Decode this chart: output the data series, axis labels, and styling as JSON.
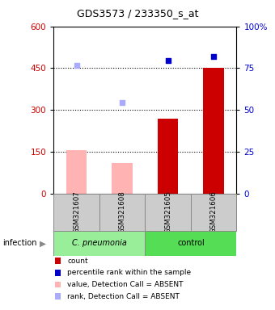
{
  "title": "GDS3573 / 233350_s_at",
  "samples": [
    "GSM321607",
    "GSM321608",
    "GSM321605",
    "GSM321606"
  ],
  "bar_values_absent": [
    157,
    110,
    null,
    null
  ],
  "bar_values_present": [
    null,
    null,
    270,
    450
  ],
  "scatter_rank_absent": [
    460,
    327,
    null,
    null
  ],
  "scatter_rank_present": [
    null,
    null,
    478,
    493
  ],
  "ylim_left": [
    0,
    600
  ],
  "ylim_right": [
    0,
    100
  ],
  "yticks_left": [
    0,
    150,
    300,
    450,
    600
  ],
  "yticks_right": [
    0,
    25,
    50,
    75,
    100
  ],
  "yticklabels_right": [
    "0",
    "25",
    "50",
    "75",
    "100%"
  ],
  "color_bar_absent": "#ffb3b3",
  "color_bar_present": "#cc0000",
  "color_scatter_absent": "#aaaaff",
  "color_scatter_present": "#0000cc",
  "group1_label": "C. pneumonia",
  "group2_label": "control",
  "group1_color": "#99ee99",
  "group2_color": "#55dd55",
  "sample_bg_color": "#cccccc",
  "infection_label": "infection",
  "legend_items": [
    {
      "label": "count",
      "color": "#cc0000"
    },
    {
      "label": "percentile rank within the sample",
      "color": "#0000cc"
    },
    {
      "label": "value, Detection Call = ABSENT",
      "color": "#ffb3b3"
    },
    {
      "label": "rank, Detection Call = ABSENT",
      "color": "#aaaaff"
    }
  ],
  "axis_left_color": "#cc0000",
  "axis_right_color": "#0000cc"
}
